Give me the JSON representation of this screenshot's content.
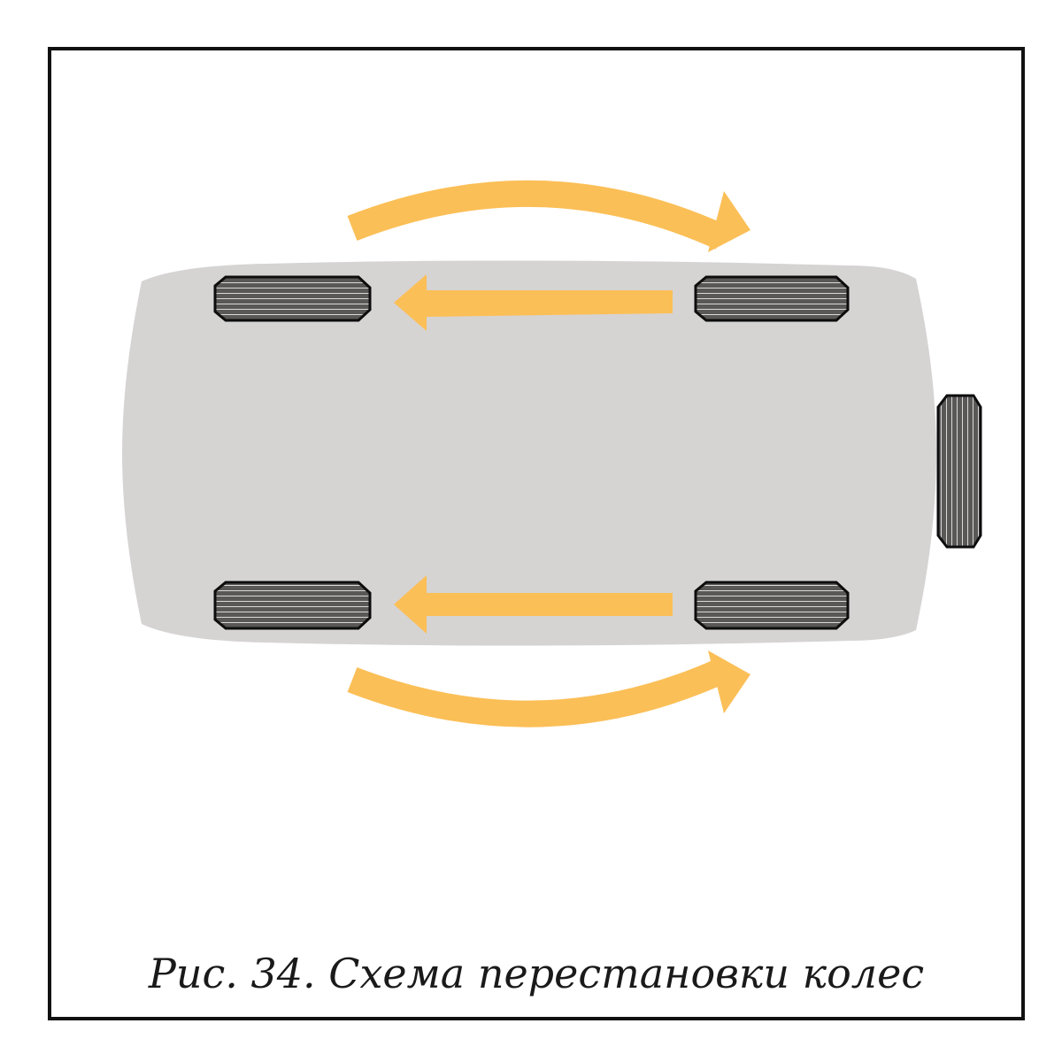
{
  "caption": "Рис. 34. Схема перестановки колес",
  "colors": {
    "frame": "#111111",
    "car_body": "#d6d3d3",
    "arrow": "#fbbf57",
    "tire_fill": "#5a5757",
    "tire_stroke": "#0d0d0d",
    "tread_line": "#d9d9d9"
  },
  "icons": {
    "car": "car-top-view",
    "tire": "tire-icon",
    "arrow": "arrow"
  }
}
